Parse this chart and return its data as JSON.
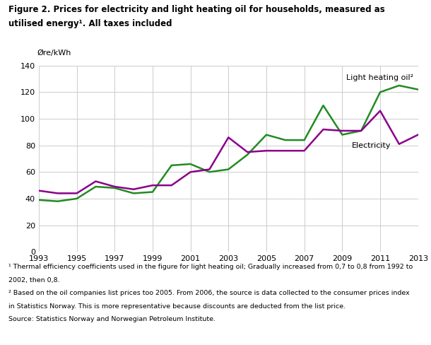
{
  "title_line1": "Figure 2. Prices for electricity and light heating oil for households, measured as",
  "title_line2": "utilised energy¹. All taxes included",
  "ylabel": "Øre/kWh",
  "years": [
    1993,
    1994,
    1995,
    1996,
    1997,
    1998,
    1999,
    2000,
    2001,
    2002,
    2003,
    2004,
    2005,
    2006,
    2007,
    2008,
    2009,
    2010,
    2011,
    2012,
    2013
  ],
  "electricity": [
    46,
    44,
    44,
    53,
    49,
    47,
    50,
    50,
    60,
    62,
    86,
    75,
    76,
    76,
    76,
    92,
    91,
    91,
    106,
    81,
    88
  ],
  "oil": [
    39,
    38,
    40,
    49,
    48,
    44,
    45,
    65,
    66,
    60,
    62,
    73,
    88,
    84,
    84,
    110,
    88,
    91,
    120,
    125,
    122
  ],
  "electricity_color": "#8B008B",
  "oil_color": "#228B22",
  "ylim": [
    0,
    140
  ],
  "yticks": [
    0,
    20,
    40,
    60,
    80,
    100,
    120,
    140
  ],
  "xticks": [
    1993,
    1995,
    1997,
    1999,
    2001,
    2003,
    2005,
    2007,
    2009,
    2011,
    2013
  ],
  "label_oil": "Light heating oil²",
  "label_elec": "Electricity",
  "footnote1": "¹ Thermal efficiency coefficients used in the figure for light heating oil; Gradually increased from 0,7 to 0,8 from 1992 to",
  "footnote1b": "2002, then 0,8.",
  "footnote2": "² Based on the oil companies list prices too 2005. From 2006, the source is data collected to the consumer prices index",
  "footnote2b": "in Statistics Norway. This is more representative because discounts are deducted from the list price.",
  "footnote3": "Source: Statistics Norway and Norwegian Petroleum Institute.",
  "line_width": 1.8
}
